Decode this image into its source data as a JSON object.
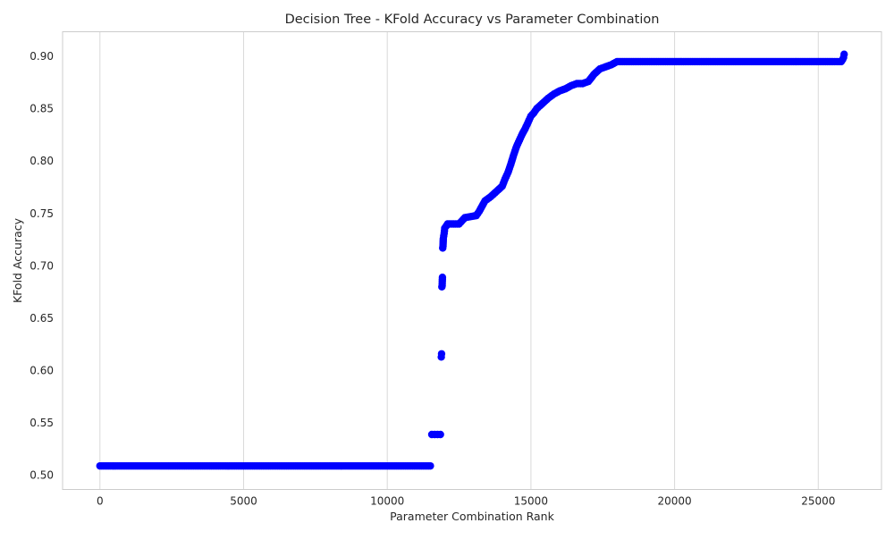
{
  "chart_data": {
    "type": "scatter",
    "title": "Decision Tree - KFold Accuracy vs Parameter Combination",
    "xlabel": "Parameter Combination Rank",
    "ylabel": "KFold Accuracy",
    "xlim": [
      -1300,
      27200
    ],
    "ylim": [
      0.4865,
      0.9235
    ],
    "xticks": [
      0,
      5000,
      10000,
      15000,
      20000,
      25000
    ],
    "xtick_labels": [
      "0",
      "5000",
      "10000",
      "15000",
      "20000",
      "25000"
    ],
    "yticks": [
      0.5,
      0.55,
      0.6,
      0.65,
      0.7,
      0.75,
      0.8,
      0.85,
      0.9
    ],
    "ytick_labels": [
      "0.50",
      "0.55",
      "0.60",
      "0.65",
      "0.70",
      "0.75",
      "0.80",
      "0.85",
      "0.90"
    ],
    "grid": "vertical",
    "marker_color": "#0000ff",
    "series": [
      {
        "x": [
          0,
          500,
          1000,
          1500,
          2000,
          2500,
          3000,
          3500,
          4000,
          4500,
          5000,
          5500,
          6000,
          6500,
          7000,
          7500,
          8000,
          8500,
          9000,
          9500,
          10000,
          10500,
          11000,
          11500,
          11550,
          11650,
          11750,
          11850,
          11880,
          11890,
          11900,
          11910,
          11920,
          11930,
          11940,
          11950,
          11980,
          12000,
          12100,
          12300,
          12500,
          12700,
          12900,
          13100,
          13200,
          13300,
          13400,
          13600,
          13800,
          14000,
          14100,
          14200,
          14300,
          14400,
          14500,
          14600,
          14700,
          14800,
          14900,
          15000,
          15100,
          15200,
          15400,
          15600,
          15800,
          16000,
          16200,
          16400,
          16600,
          16800,
          17000,
          17200,
          17400,
          17600,
          17800,
          18000,
          18500,
          19000,
          19500,
          20000,
          20500,
          21000,
          21500,
          22000,
          22500,
          23000,
          23500,
          24000,
          24500,
          25000,
          25500,
          25800,
          25850,
          25880,
          25900
        ],
        "y": [
          0.509,
          0.509,
          0.509,
          0.509,
          0.509,
          0.509,
          0.509,
          0.509,
          0.509,
          0.509,
          0.509,
          0.509,
          0.509,
          0.509,
          0.509,
          0.509,
          0.509,
          0.509,
          0.509,
          0.509,
          0.509,
          0.509,
          0.509,
          0.509,
          0.539,
          0.539,
          0.539,
          0.539,
          0.613,
          0.616,
          0.68,
          0.681,
          0.689,
          0.717,
          0.719,
          0.726,
          0.731,
          0.736,
          0.74,
          0.74,
          0.74,
          0.746,
          0.747,
          0.748,
          0.752,
          0.757,
          0.762,
          0.766,
          0.771,
          0.776,
          0.783,
          0.789,
          0.797,
          0.806,
          0.814,
          0.82,
          0.826,
          0.831,
          0.837,
          0.843,
          0.846,
          0.85,
          0.855,
          0.86,
          0.864,
          0.867,
          0.869,
          0.872,
          0.874,
          0.874,
          0.876,
          0.883,
          0.888,
          0.89,
          0.892,
          0.895,
          0.895,
          0.895,
          0.895,
          0.895,
          0.895,
          0.895,
          0.895,
          0.895,
          0.895,
          0.895,
          0.895,
          0.895,
          0.895,
          0.895,
          0.895,
          0.895,
          0.897,
          0.899,
          0.902
        ]
      }
    ]
  }
}
